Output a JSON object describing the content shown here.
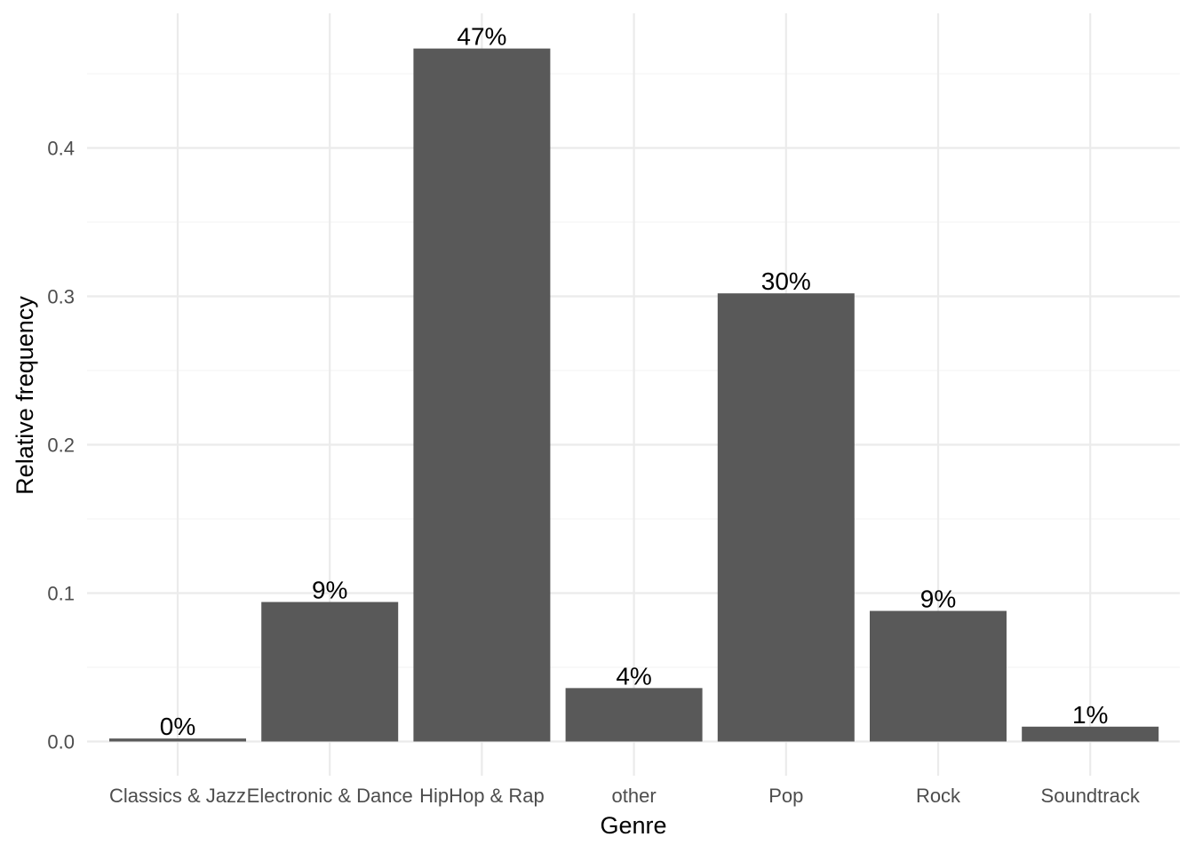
{
  "chart_data": {
    "type": "bar",
    "categories": [
      "Classics & Jazz",
      "Electronic & Dance",
      "HipHop & Rap",
      "other",
      "Pop",
      "Rock",
      "Soundtrack"
    ],
    "values": [
      0.002,
      0.094,
      0.467,
      0.036,
      0.302,
      0.088,
      0.01
    ],
    "data_labels": [
      "0%",
      "9%",
      "47%",
      "4%",
      "30%",
      "9%",
      "1%"
    ],
    "xlabel": "Genre",
    "ylabel": "Relative frequency",
    "ylim": [
      0,
      0.49
    ],
    "yticks": [
      0.0,
      0.1,
      0.2,
      0.3,
      0.4
    ],
    "ytick_labels": [
      "0.0",
      "0.1",
      "0.2",
      "0.3",
      "0.4"
    ],
    "grid": true,
    "colors": {
      "bar": "#595959",
      "grid_major": "#ebebeb",
      "grid_minor": "#f5f5f5"
    }
  }
}
